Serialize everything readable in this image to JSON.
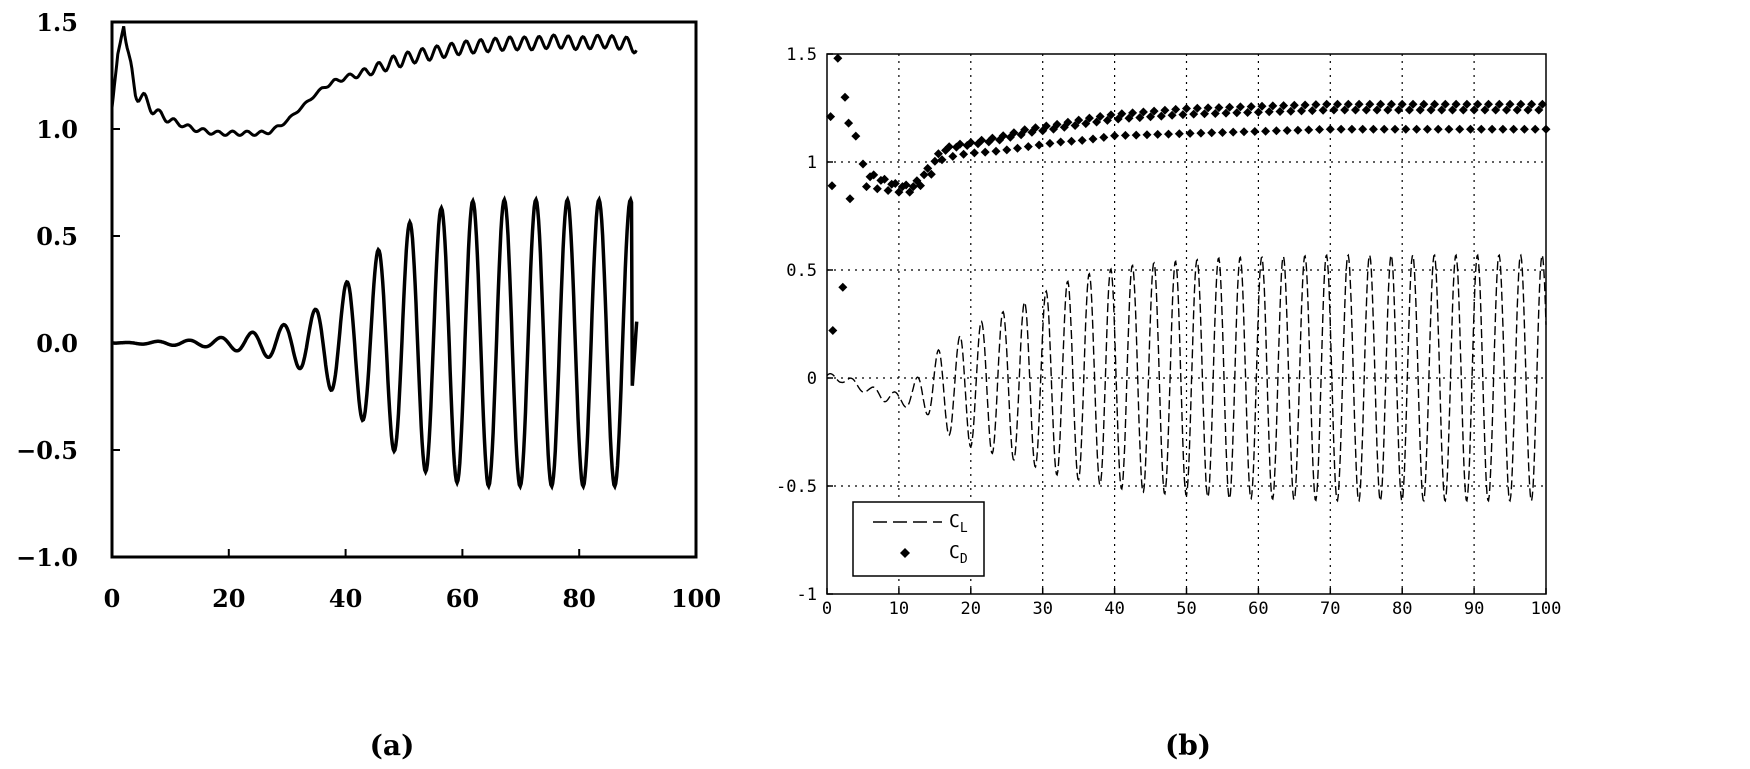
{
  "chart_data": [
    {
      "panel_label": "(a)",
      "type": "line",
      "xlim": [
        0,
        100
      ],
      "ylim": [
        -1.0,
        1.5
      ],
      "x_ticks": [
        "0",
        "20",
        "40",
        "60",
        "80",
        "100"
      ],
      "y_ticks": [
        "1.5",
        "1.0",
        "0.5",
        "0.0",
        "−0.5",
        "−1.0"
      ],
      "grid": false,
      "series": [
        {
          "role": "drag",
          "x": [
            0,
            1,
            2,
            3,
            4,
            6,
            8,
            10,
            12,
            14,
            16,
            18,
            20,
            22,
            24,
            26,
            28,
            30,
            32,
            34,
            36,
            38,
            40,
            44,
            48,
            52,
            56,
            60,
            64,
            68,
            72,
            76,
            80,
            84,
            88,
            90
          ],
          "y": [
            1.1,
            1.35,
            1.48,
            1.3,
            1.18,
            1.12,
            1.07,
            1.04,
            1.02,
            1.0,
            0.99,
            0.98,
            0.98,
            0.98,
            0.98,
            0.98,
            1.0,
            1.04,
            1.09,
            1.14,
            1.19,
            1.22,
            1.24,
            1.27,
            1.31,
            1.34,
            1.36,
            1.38,
            1.39,
            1.4,
            1.4,
            1.41,
            1.4,
            1.41,
            1.4,
            1.38
          ],
          "oscillation_amplitude": [
            0.0,
            0.0,
            0.0,
            0.04,
            0.04,
            0.03,
            0.02,
            0.015,
            0.01,
            0.01,
            0.01,
            0.01,
            0.01,
            0.01,
            0.01,
            0.01,
            0.01,
            0.005,
            0.005,
            0.005,
            0.005,
            0.01,
            0.01,
            0.02,
            0.03,
            0.03,
            0.03,
            0.03,
            0.03,
            0.03,
            0.03,
            0.03,
            0.03,
            0.03,
            0.03,
            0.03
          ],
          "period": 2.5
        },
        {
          "role": "lift",
          "x": [
            0,
            5,
            10,
            15,
            20,
            25,
            30,
            35,
            40,
            45,
            50,
            55,
            60,
            65,
            70,
            75,
            80,
            85,
            90
          ],
          "amplitude": [
            0.0,
            0.005,
            0.01,
            0.015,
            0.03,
            0.055,
            0.09,
            0.16,
            0.28,
            0.42,
            0.55,
            0.62,
            0.66,
            0.67,
            0.67,
            0.67,
            0.67,
            0.67,
            0.67
          ],
          "period": 5.4,
          "offset": 0.0,
          "end_value": 0.16
        }
      ]
    },
    {
      "panel_label": "(b)",
      "type": "line",
      "xlim": [
        0,
        100
      ],
      "ylim": [
        -1,
        1.5
      ],
      "x_ticks": [
        "0",
        "10",
        "20",
        "30",
        "40",
        "50",
        "60",
        "70",
        "80",
        "90",
        "100"
      ],
      "y_ticks": [
        "1.5",
        "1",
        "0.5",
        "0",
        "-0.5",
        "-1"
      ],
      "grid": true,
      "legend": {
        "placement": "bottom-left",
        "entries": [
          {
            "base": "C",
            "sub": "L",
            "style": "dashed"
          },
          {
            "base": "C",
            "sub": "D",
            "style": "diamond"
          }
        ]
      },
      "series": [
        {
          "name": "C_L",
          "style": "dashed",
          "x": [
            0,
            2,
            4,
            6,
            8,
            10,
            12,
            14,
            16,
            18,
            20,
            24,
            28,
            32,
            36,
            40,
            44,
            48,
            52,
            56,
            60,
            70,
            80,
            90,
            100
          ],
          "amplitude": [
            0.02,
            0.02,
            0.02,
            0.02,
            0.03,
            0.03,
            0.06,
            0.12,
            0.2,
            0.23,
            0.28,
            0.33,
            0.38,
            0.44,
            0.48,
            0.51,
            0.53,
            0.54,
            0.55,
            0.56,
            0.56,
            0.57,
            0.57,
            0.57,
            0.57
          ],
          "drift": [
            0.0,
            0.0,
            -0.03,
            -0.06,
            -0.08,
            -0.1,
            -0.08,
            -0.05,
            -0.05,
            -0.05,
            -0.04,
            -0.03,
            -0.02,
            -0.01,
            0.0,
            0.0,
            0.0,
            0.0,
            0.0,
            0.0,
            0.0,
            0.0,
            0.0,
            0.0,
            0.0
          ],
          "period": 3.0
        },
        {
          "name": "C_D",
          "style": "diamond",
          "x": [
            0,
            1,
            2,
            3,
            4,
            5,
            6,
            8,
            10,
            12,
            14,
            16,
            18,
            20,
            24,
            28,
            32,
            36,
            40,
            50,
            60,
            70,
            80,
            90,
            100
          ],
          "y": [
            1.05,
            1.1,
            1.15,
            1.05,
            1.0,
            0.95,
            0.92,
            0.9,
            0.88,
            0.88,
            0.95,
            1.04,
            1.06,
            1.07,
            1.09,
            1.12,
            1.14,
            1.16,
            1.18,
            1.2,
            1.21,
            1.22,
            1.22,
            1.22,
            1.22
          ],
          "spread": [
            0.3,
            0.35,
            0.3,
            0.15,
            0.1,
            0.06,
            0.04,
            0.03,
            0.02,
            0.02,
            0.03,
            0.03,
            0.03,
            0.03,
            0.04,
            0.05,
            0.05,
            0.06,
            0.06,
            0.07,
            0.07,
            0.07,
            0.07,
            0.07,
            0.07
          ],
          "outliers": [
            {
              "x": 0.5,
              "y": 1.21
            },
            {
              "x": 0.7,
              "y": 0.89
            },
            {
              "x": 0.8,
              "y": 0.22
            },
            {
              "x": 1.5,
              "y": 1.48
            },
            {
              "x": 2.2,
              "y": 0.42
            },
            {
              "x": 2.5,
              "y": 1.3
            },
            {
              "x": 3.0,
              "y": 1.18
            },
            {
              "x": 3.2,
              "y": 0.83
            },
            {
              "x": 4.0,
              "y": 1.12
            }
          ]
        }
      ]
    }
  ]
}
